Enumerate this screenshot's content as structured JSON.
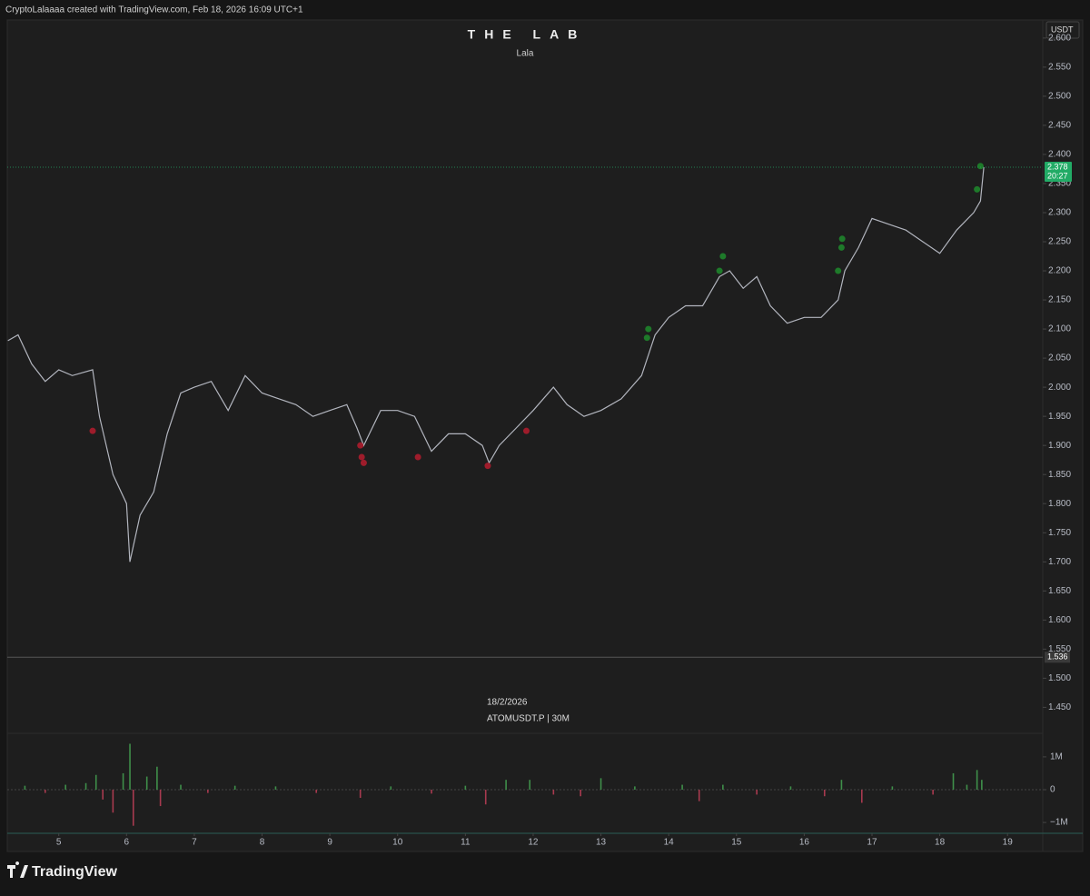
{
  "header": {
    "credit": "CryptoLalaaaa created with TradingView.com, Feb 18, 2026 16:09 UTC+1",
    "brand": "TradingView"
  },
  "chart_data": [
    {
      "type": "line",
      "title": "THE LAB",
      "subtitle": "Lala",
      "date_note": "18/2/2026",
      "symbol": "ATOMUSDT.P | 30M",
      "currency": "USDT",
      "color": "#b2b5be",
      "x": [
        4.25,
        4.4,
        4.6,
        4.8,
        5.0,
        5.2,
        5.5,
        5.6,
        5.8,
        6.0,
        6.05,
        6.2,
        6.4,
        6.6,
        6.8,
        7.0,
        7.25,
        7.5,
        7.75,
        8.0,
        8.25,
        8.5,
        8.75,
        9.0,
        9.25,
        9.4,
        9.5,
        9.75,
        10.0,
        10.25,
        10.5,
        10.75,
        11.0,
        11.25,
        11.35,
        11.5,
        11.75,
        12.0,
        12.3,
        12.5,
        12.75,
        13.0,
        13.3,
        13.6,
        13.8,
        14.0,
        14.25,
        14.5,
        14.75,
        14.9,
        15.1,
        15.3,
        15.5,
        15.75,
        16.0,
        16.25,
        16.5,
        16.6,
        16.8,
        17.0,
        17.25,
        17.5,
        17.75,
        18.0,
        18.25,
        18.5,
        18.6,
        18.65
      ],
      "values": [
        2.08,
        2.09,
        2.04,
        2.01,
        2.03,
        2.02,
        2.03,
        1.95,
        1.85,
        1.8,
        1.7,
        1.78,
        1.82,
        1.92,
        1.99,
        2.0,
        2.01,
        1.96,
        2.02,
        1.99,
        1.98,
        1.97,
        1.95,
        1.96,
        1.97,
        1.93,
        1.9,
        1.96,
        1.96,
        1.95,
        1.89,
        1.92,
        1.92,
        1.9,
        1.87,
        1.9,
        1.93,
        1.96,
        2.0,
        1.97,
        1.95,
        1.96,
        1.98,
        2.02,
        2.09,
        2.12,
        2.14,
        2.14,
        2.19,
        2.2,
        2.17,
        2.19,
        2.14,
        2.11,
        2.12,
        2.12,
        2.15,
        2.2,
        2.24,
        2.29,
        2.28,
        2.27,
        2.25,
        2.23,
        2.27,
        2.3,
        2.32,
        2.378
      ],
      "sell_signals": {
        "color": "#9e1c2b",
        "x": [
          5.5,
          9.45,
          9.47,
          9.5,
          10.3,
          11.33,
          11.9
        ],
        "y": [
          1.925,
          1.9,
          1.88,
          1.87,
          1.88,
          1.865,
          1.925
        ]
      },
      "buy_signals": {
        "color": "#1e7a2a",
        "x": [
          13.7,
          13.68,
          14.75,
          14.8,
          16.5,
          16.55,
          16.56,
          18.55,
          18.6
        ],
        "y": [
          2.1,
          2.085,
          2.2,
          2.225,
          2.2,
          2.24,
          2.255,
          2.34,
          2.38
        ]
      },
      "last_price": 2.378,
      "last_price_color": "#22ab66",
      "countdown": "20:27",
      "level": 1.536,
      "xlim": [
        4.24,
        19.52
      ],
      "xticks": [
        5,
        6,
        7,
        8,
        9,
        10,
        11,
        12,
        13,
        14,
        15,
        16,
        17,
        18,
        19
      ],
      "ylim": [
        1.41,
        2.631
      ],
      "yticks": [
        {
          "value": 1.45,
          "label": "1.450"
        },
        {
          "value": 1.5,
          "label": "1.500"
        },
        {
          "value": 1.55,
          "label": "1.550"
        },
        {
          "value": 1.6,
          "label": "1.600"
        },
        {
          "value": 1.65,
          "label": "1.650"
        },
        {
          "value": 1.7,
          "label": "1.700"
        },
        {
          "value": 1.75,
          "label": "1.750"
        },
        {
          "value": 1.8,
          "label": "1.800"
        },
        {
          "value": 1.85,
          "label": "1.850"
        },
        {
          "value": 1.9,
          "label": "1.900"
        },
        {
          "value": 1.95,
          "label": "1.950"
        },
        {
          "value": 2.0,
          "label": "2.000"
        },
        {
          "value": 2.05,
          "label": "2.050"
        },
        {
          "value": 2.1,
          "label": "2.100"
        },
        {
          "value": 2.15,
          "label": "2.150"
        },
        {
          "value": 2.2,
          "label": "2.200"
        },
        {
          "value": 2.25,
          "label": "2.250"
        },
        {
          "value": 2.3,
          "label": "2.300"
        },
        {
          "value": 2.35,
          "label": "2.350"
        },
        {
          "value": 2.4,
          "label": "2.400"
        },
        {
          "value": 2.45,
          "label": "2.450"
        },
        {
          "value": 2.5,
          "label": "2.500"
        },
        {
          "value": 2.55,
          "label": "2.550"
        },
        {
          "value": 2.6,
          "label": "2.600"
        }
      ]
    },
    {
      "type": "bar",
      "up_color": "#3f8f4a",
      "down_color": "#a83a4f",
      "x": [
        4.5,
        4.8,
        5.1,
        5.4,
        5.55,
        5.65,
        5.8,
        5.95,
        6.05,
        6.1,
        6.3,
        6.45,
        6.5,
        6.8,
        7.2,
        7.6,
        8.2,
        8.8,
        9.45,
        9.9,
        10.5,
        11.0,
        11.3,
        11.6,
        11.95,
        12.3,
        12.7,
        13.0,
        13.5,
        14.2,
        14.45,
        14.8,
        15.3,
        15.8,
        16.3,
        16.55,
        16.85,
        17.3,
        17.9,
        18.2,
        18.4,
        18.55,
        18.62
      ],
      "values": [
        120000,
        -100000,
        150000,
        200000,
        450000,
        -300000,
        -700000,
        500000,
        1400000,
        -1100000,
        400000,
        700000,
        -500000,
        150000,
        -100000,
        120000,
        100000,
        -100000,
        -250000,
        100000,
        -120000,
        120000,
        -450000,
        300000,
        300000,
        -150000,
        -200000,
        350000,
        100000,
        150000,
        -350000,
        150000,
        -150000,
        100000,
        -200000,
        300000,
        -400000,
        100000,
        -150000,
        500000,
        150000,
        600000,
        300000
      ],
      "ylim": [
        -1330000,
        1690000
      ],
      "yticks": [
        {
          "value": 1000000,
          "label": "1M"
        },
        0,
        {
          "value": -1000000,
          "label": "−1M"
        }
      ]
    }
  ]
}
